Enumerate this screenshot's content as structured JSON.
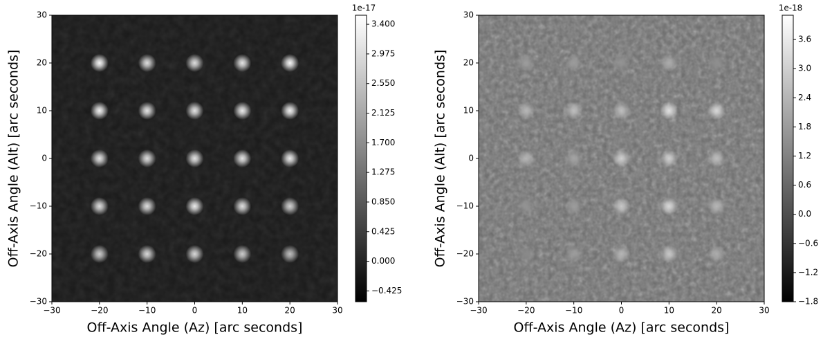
{
  "chart_data": [
    {
      "type": "image",
      "xlabel": "Off-Axis Angle (Az) [arc seconds]",
      "ylabel": "Off-Axis Angle (Alt) [arc seconds]",
      "xlim": [
        -30,
        30
      ],
      "ylim": [
        -30,
        30
      ],
      "xticks": [
        {
          "value": -30,
          "label": "−30"
        },
        {
          "value": -20,
          "label": "−20"
        },
        {
          "value": -10,
          "label": "−10"
        },
        0,
        10,
        20,
        30
      ],
      "yticks": [
        {
          "value": -30,
          "label": "−30"
        },
        {
          "value": -20,
          "label": "−20"
        },
        {
          "value": -10,
          "label": "−10"
        },
        0,
        10,
        20,
        30
      ],
      "cmap": "gray",
      "colorbar": {
        "offset_label": "1e-17",
        "clim": [
          -0.58,
          3.53
        ],
        "ticks": [
          {
            "value": -0.425,
            "label": "−0.425"
          },
          {
            "value": 0,
            "label": "0.000"
          },
          {
            "value": 0.425,
            "label": "0.425"
          },
          {
            "value": 0.85,
            "label": "0.850"
          },
          {
            "value": 1.275,
            "label": "1.275"
          },
          {
            "value": 1.7,
            "label": "1.700"
          },
          {
            "value": 2.125,
            "label": "2.125"
          },
          {
            "value": 2.55,
            "label": "2.550"
          },
          {
            "value": 2.975,
            "label": "2.975"
          },
          {
            "value": 3.4,
            "label": "3.400"
          }
        ]
      },
      "sources": {
        "x": [
          -20,
          -10,
          0,
          10,
          20,
          -20,
          -10,
          0,
          10,
          20,
          -20,
          -10,
          0,
          10,
          20,
          -20,
          -10,
          0,
          10,
          20,
          -20,
          -10,
          0,
          10,
          20
        ],
        "y": [
          20,
          20,
          20,
          20,
          20,
          10,
          10,
          10,
          10,
          10,
          0,
          0,
          0,
          0,
          0,
          -10,
          -10,
          -10,
          -10,
          -10,
          -20,
          -20,
          -20,
          -20,
          -20
        ],
        "values": [
          3.4,
          3.0,
          3.0,
          3.1,
          3.4,
          3.3,
          3.1,
          3.1,
          3.2,
          3.3,
          3.1,
          3.0,
          3.1,
          3.1,
          3.2,
          3.0,
          3.0,
          3.2,
          3.0,
          2.8,
          2.7,
          2.9,
          2.9,
          2.7,
          2.5
        ]
      }
    },
    {
      "type": "image",
      "xlabel": "Off-Axis Angle (Az) [arc seconds]",
      "ylabel": "Off-Axis Angle (Alt) [arc seconds]",
      "xlim": [
        -30,
        30
      ],
      "ylim": [
        -30,
        30
      ],
      "xticks": [
        {
          "value": -30,
          "label": "−30"
        },
        {
          "value": -20,
          "label": "−20"
        },
        {
          "value": -10,
          "label": "−10"
        },
        0,
        10,
        20,
        30
      ],
      "yticks": [
        {
          "value": -30,
          "label": "−30"
        },
        {
          "value": -20,
          "label": "−20"
        },
        {
          "value": -10,
          "label": "−10"
        },
        0,
        10,
        20,
        30
      ],
      "cmap": "gray",
      "colorbar": {
        "offset_label": "1e-18",
        "clim": [
          -1.8,
          4.1
        ],
        "ticks": [
          {
            "value": -1.8,
            "label": "−1.8"
          },
          {
            "value": -1.2,
            "label": "−1.2"
          },
          {
            "value": -0.6,
            "label": "−0.6"
          },
          {
            "value": 0,
            "label": "0.0"
          },
          0.6,
          1.2,
          1.8,
          2.4,
          {
            "value": 3,
            "label": "3.0"
          },
          3.6
        ]
      },
      "sources": {
        "x": [
          -20,
          -10,
          0,
          10,
          20,
          -20,
          -10,
          0,
          10,
          20,
          -20,
          -10,
          0,
          10,
          20,
          -20,
          -10,
          0,
          10,
          20,
          -20,
          -10,
          0,
          10,
          20
        ],
        "y": [
          20,
          20,
          20,
          20,
          20,
          10,
          10,
          10,
          10,
          10,
          0,
          0,
          0,
          0,
          0,
          -10,
          -10,
          -10,
          -10,
          -10,
          -20,
          -20,
          -20,
          -20,
          -20
        ],
        "values": [
          1.8,
          1.8,
          1.6,
          2.2,
          1.5,
          2.4,
          2.6,
          2.6,
          3.4,
          3.2,
          2.4,
          2.0,
          3.0,
          3.0,
          2.6,
          1.6,
          1.8,
          2.8,
          3.2,
          2.4,
          1.4,
          1.8,
          2.4,
          2.8,
          2.2
        ]
      }
    }
  ]
}
